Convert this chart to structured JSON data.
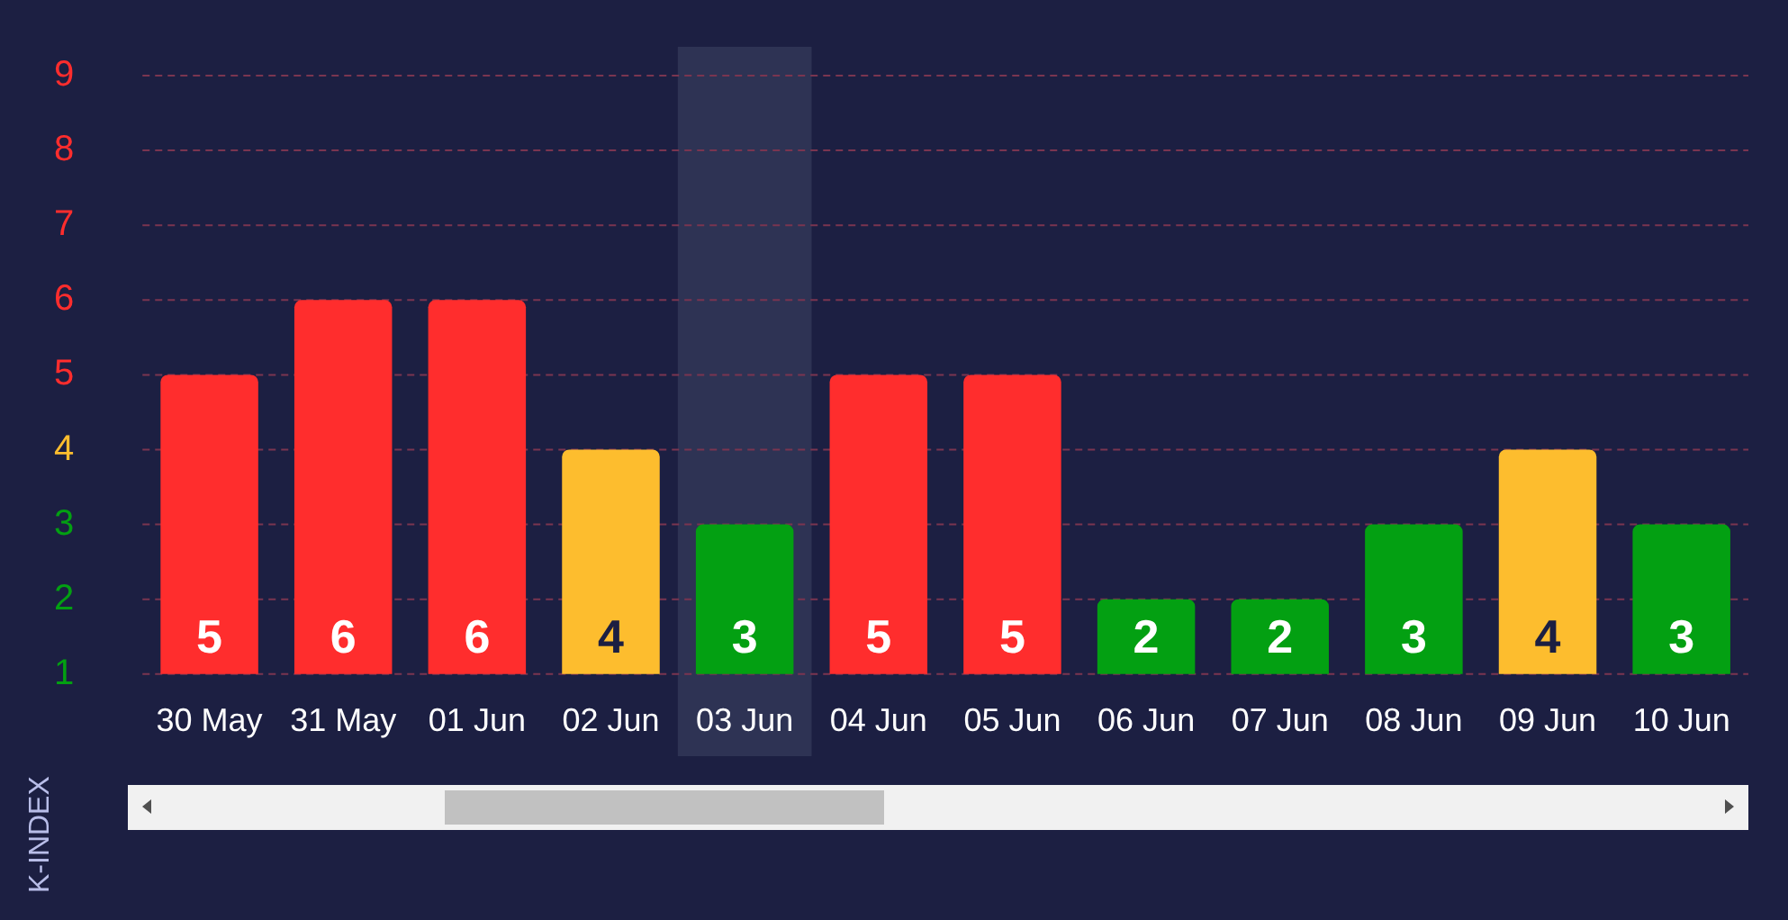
{
  "chart_data": {
    "type": "bar",
    "ylabel": "K-INDEX",
    "categories": [
      "30 May",
      "31 May",
      "01 Jun",
      "02 Jun",
      "03 Jun",
      "04 Jun",
      "05 Jun",
      "06 Jun",
      "07 Jun",
      "08 Jun",
      "09 Jun",
      "10 Jun"
    ],
    "values": [
      5,
      6,
      6,
      4,
      3,
      5,
      5,
      2,
      2,
      3,
      4,
      3
    ],
    "colors": [
      "#ff2d2d",
      "#ff2d2d",
      "#ff2d2d",
      "#fdbd2e",
      "#03a012",
      "#ff2d2d",
      "#ff2d2d",
      "#03a012",
      "#03a012",
      "#03a012",
      "#fdbd2e",
      "#03a012"
    ],
    "data_labels": true,
    "ylim": [
      1,
      9
    ],
    "yticks": [
      1,
      2,
      3,
      4,
      5,
      6,
      7,
      8,
      9
    ],
    "grid": "y",
    "bands": [
      {
        "axis": "x",
        "from": "03 Jun",
        "to": "03 Jun",
        "color": "#2e3354"
      }
    ]
  }
}
